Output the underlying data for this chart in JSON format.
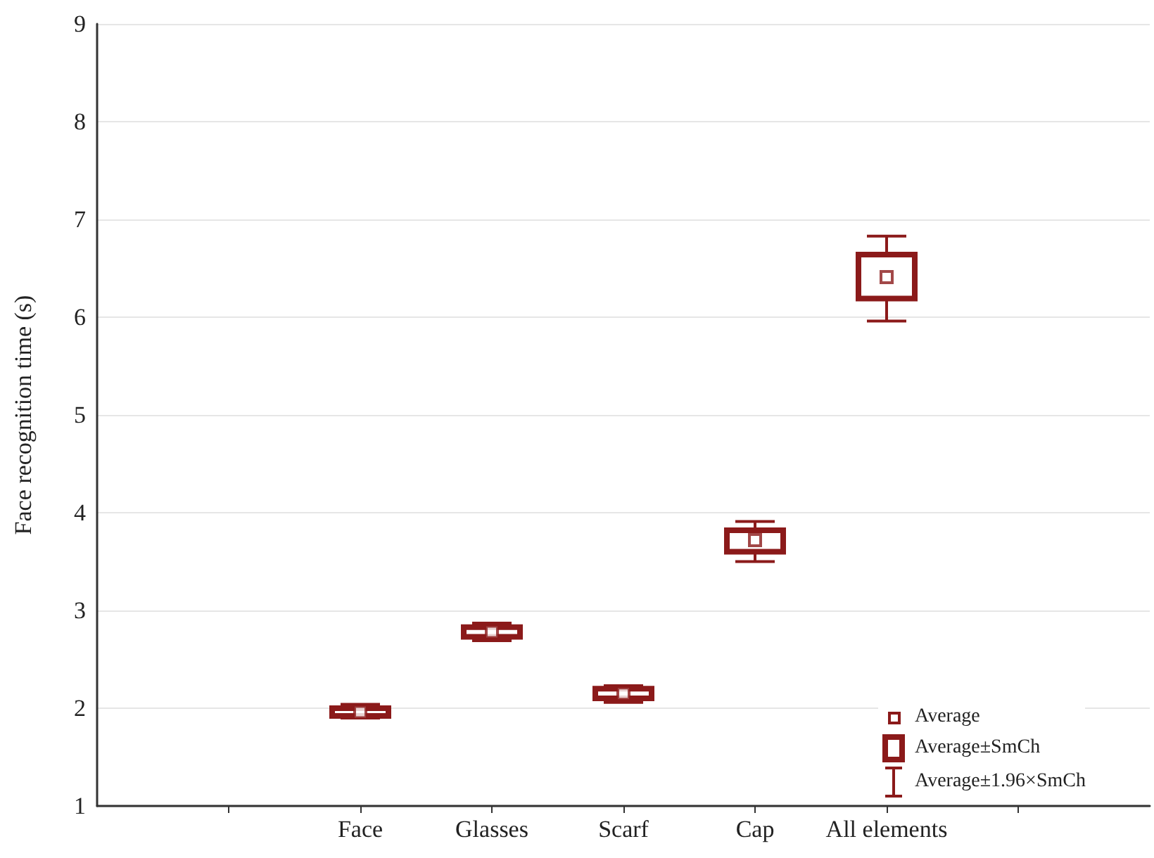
{
  "chart_data": {
    "type": "box",
    "ylabel": "Face recognition time (s)",
    "categories": [
      null,
      null,
      "Face",
      "Glasses",
      "Scarf",
      "Cap",
      "All elements",
      null,
      null
    ],
    "series": [
      {
        "color": "#8b1a1a",
        "boxes": [
          null,
          null,
          {
            "low": 1.9,
            "q1": 1.92,
            "median": 1.96,
            "q3": 2.0,
            "high": 2.04
          },
          {
            "low": 2.69,
            "q1": 2.73,
            "median": 2.78,
            "q3": 2.83,
            "high": 2.87
          },
          {
            "low": 2.06,
            "q1": 2.1,
            "median": 2.15,
            "q3": 2.2,
            "high": 2.23
          },
          {
            "low": 3.5,
            "q1": 3.6,
            "median": 3.72,
            "q3": 3.82,
            "high": 3.91
          },
          {
            "low": 5.96,
            "q1": 6.19,
            "median": 6.41,
            "q3": 6.64,
            "high": 6.83
          },
          null,
          null
        ]
      }
    ],
    "annotations": [
      "Average",
      "Average±SmCh",
      "Average±1.96×SmCh"
    ],
    "ylim": [
      1,
      9
    ],
    "yticks": [
      1,
      2,
      3,
      4,
      5,
      6,
      7,
      8,
      9
    ],
    "grid": "y"
  }
}
